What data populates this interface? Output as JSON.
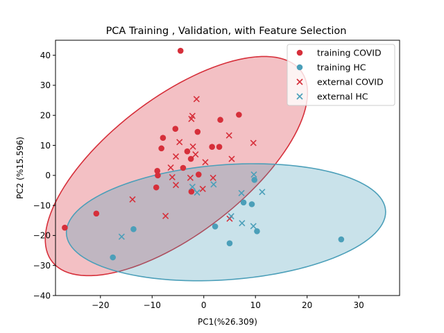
{
  "chart_data": {
    "type": "scatter",
    "title": "PCA Training , Validation, with Feature Selection",
    "xlabel": "PC1(%26.309)",
    "ylabel": "PC2 (%15.596)",
    "xlim": [
      -28.7,
      37.9
    ],
    "ylim": [
      -40,
      45
    ],
    "x_ticks": [
      -20,
      -10,
      0,
      10,
      20,
      30
    ],
    "y_ticks": [
      -40,
      -30,
      -20,
      -10,
      0,
      10,
      20,
      30,
      40
    ],
    "grid": false,
    "legend_position": "top-right",
    "colors": {
      "covid": "#d62f3a",
      "hc": "#4b9fb9"
    },
    "series": [
      {
        "name": "training COVID",
        "marker": "circle",
        "color": "#d62f3a",
        "points": [
          [
            -4.5,
            41.5
          ],
          [
            6.8,
            20.2
          ],
          [
            -5.5,
            15.5
          ],
          [
            3.2,
            18.5
          ],
          [
            -1.2,
            14.5
          ],
          [
            -7.9,
            12.5
          ],
          [
            -3.2,
            8.0
          ],
          [
            -8.2,
            9.0
          ],
          [
            1.6,
            9.5
          ],
          [
            3.0,
            9.5
          ],
          [
            -2.5,
            5.5
          ],
          [
            -4.0,
            2.5
          ],
          [
            -1.0,
            0.3
          ],
          [
            -9.0,
            1.5
          ],
          [
            -8.9,
            0.0
          ],
          [
            -9.2,
            -4.0
          ],
          [
            -2.4,
            -5.4
          ],
          [
            -20.8,
            -12.7
          ],
          [
            -26.9,
            -17.4
          ]
        ]
      },
      {
        "name": "training HC",
        "marker": "circle",
        "color": "#4b9fb9",
        "points": [
          [
            9.8,
            -1.5
          ],
          [
            7.7,
            -9.0
          ],
          [
            9.3,
            -9.6
          ],
          [
            2.2,
            -17.0
          ],
          [
            10.3,
            -18.6
          ],
          [
            5.0,
            -22.6
          ],
          [
            -13.6,
            -17.9
          ],
          [
            -17.6,
            -27.3
          ],
          [
            26.6,
            -21.3
          ]
        ]
      },
      {
        "name": "external COVID",
        "marker": "x",
        "color": "#d62f3a",
        "points": [
          [
            -1.4,
            25.4
          ],
          [
            -2.2,
            19.8
          ],
          [
            -2.4,
            18.8
          ],
          [
            4.9,
            13.3
          ],
          [
            9.6,
            10.8
          ],
          [
            -4.7,
            11.1
          ],
          [
            -2.1,
            9.6
          ],
          [
            -1.6,
            7.0
          ],
          [
            -5.4,
            6.3
          ],
          [
            5.4,
            5.5
          ],
          [
            0.3,
            4.4
          ],
          [
            -6.4,
            2.6
          ],
          [
            -2.6,
            -0.8
          ],
          [
            -6.1,
            -0.6
          ],
          [
            1.8,
            -0.8
          ],
          [
            -5.4,
            -3.2
          ],
          [
            -0.2,
            -4.5
          ],
          [
            -13.8,
            -8.0
          ],
          [
            -7.4,
            -13.5
          ],
          [
            5.0,
            -14.4
          ]
        ]
      },
      {
        "name": "external HC",
        "marker": "x",
        "color": "#4b9fb9",
        "points": [
          [
            9.7,
            0.3
          ],
          [
            1.9,
            -3.0
          ],
          [
            -2.2,
            -3.8
          ],
          [
            -1.3,
            -5.7
          ],
          [
            7.3,
            -5.9
          ],
          [
            11.3,
            -5.5
          ],
          [
            5.3,
            -13.6
          ],
          [
            7.4,
            -15.9
          ],
          [
            9.6,
            -16.9
          ],
          [
            -15.9,
            -20.4
          ]
        ]
      }
    ],
    "ellipses": [
      {
        "group": "COVID",
        "color": "#d62f3a",
        "fill_alpha": 0.3,
        "center": [
          -5.3,
          3.1
        ],
        "semi_axes": [
          41.2,
          16.7
        ],
        "angle_deg": 59.5
      },
      {
        "group": "HC",
        "color": "#4b9fb9",
        "fill_alpha": 0.3,
        "center": [
          4.3,
          -15.6
        ],
        "semi_axes": [
          31.2,
          19.0
        ],
        "angle_deg": 10.1
      }
    ]
  }
}
